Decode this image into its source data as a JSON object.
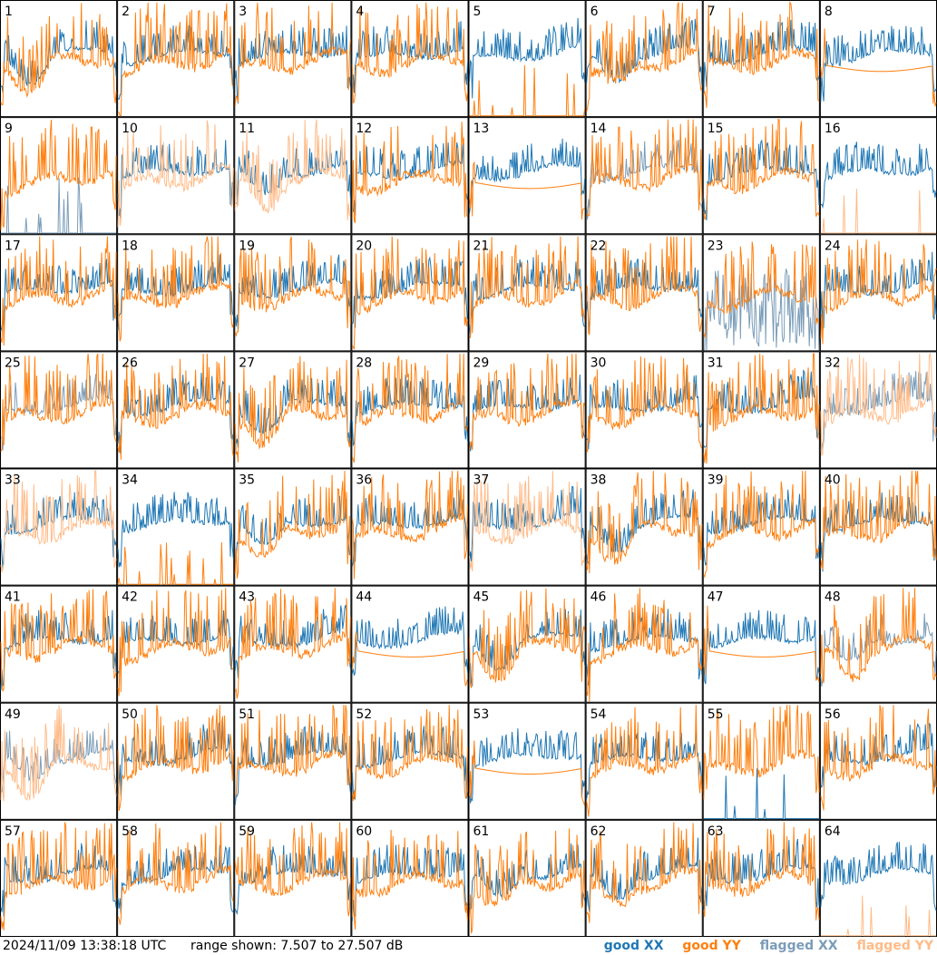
{
  "colors": {
    "good_xx": "#1f77b4",
    "good_yy": "#ff7f0e",
    "flagged_xx": "#7a9cb8",
    "flagged_yy": "#ffbb88",
    "border": "#000000"
  },
  "footer": {
    "timestamp": "2024/11/09 13:38:18 UTC",
    "range_text": "range shown: 7.507 to 27.507 dB"
  },
  "legend": {
    "good_xx": "good XX",
    "good_yy": "good YY",
    "flagged_xx": "flagged XX",
    "flagged_yy": "flagged YY"
  },
  "chart_data": {
    "type": "line",
    "grid": {
      "rows": 8,
      "cols": 8
    },
    "y_range_db": [
      7.507,
      27.507
    ],
    "panels": [
      {
        "label": "1",
        "xx": "good",
        "yy": "good",
        "shape": "dip"
      },
      {
        "label": "2",
        "xx": "good",
        "yy": "good",
        "shape": "normal"
      },
      {
        "label": "3",
        "xx": "good",
        "yy": "good",
        "shape": "normal"
      },
      {
        "label": "4",
        "xx": "good",
        "yy": "good",
        "shape": "normal"
      },
      {
        "label": "5",
        "xx": "good",
        "yy": "good",
        "shape": "yy_dead"
      },
      {
        "label": "6",
        "xx": "good",
        "yy": "good",
        "shape": "dip"
      },
      {
        "label": "7",
        "xx": "good",
        "yy": "good",
        "shape": "normal"
      },
      {
        "label": "8",
        "xx": "good",
        "yy": "good",
        "shape": "yy_smooth"
      },
      {
        "label": "9",
        "xx": "flagged",
        "yy": "good",
        "shape": "xx_dead"
      },
      {
        "label": "10",
        "xx": "good",
        "yy": "flagged",
        "shape": "normal"
      },
      {
        "label": "11",
        "xx": "good",
        "yy": "flagged",
        "shape": "dip"
      },
      {
        "label": "12",
        "xx": "good",
        "yy": "good",
        "shape": "normal"
      },
      {
        "label": "13",
        "xx": "good",
        "yy": "good",
        "shape": "yy_smooth"
      },
      {
        "label": "14",
        "xx": "flagged",
        "yy": "good",
        "shape": "normal"
      },
      {
        "label": "15",
        "xx": "good",
        "yy": "good",
        "shape": "normal"
      },
      {
        "label": "16",
        "xx": "good",
        "yy": "flagged",
        "shape": "yy_dead"
      },
      {
        "label": "17",
        "xx": "good",
        "yy": "good",
        "shape": "normal"
      },
      {
        "label": "18",
        "xx": "good",
        "yy": "good",
        "shape": "normal"
      },
      {
        "label": "19",
        "xx": "good",
        "yy": "good",
        "shape": "normal"
      },
      {
        "label": "20",
        "xx": "good",
        "yy": "good",
        "shape": "normal"
      },
      {
        "label": "21",
        "xx": "good",
        "yy": "good",
        "shape": "normal"
      },
      {
        "label": "22",
        "xx": "good",
        "yy": "good",
        "shape": "normal"
      },
      {
        "label": "23",
        "xx": "flagged",
        "yy": "good",
        "shape": "xx_noise"
      },
      {
        "label": "24",
        "xx": "good",
        "yy": "good",
        "shape": "normal"
      },
      {
        "label": "25",
        "xx": "flagged",
        "yy": "good",
        "shape": "normal"
      },
      {
        "label": "26",
        "xx": "good",
        "yy": "good",
        "shape": "normal"
      },
      {
        "label": "27",
        "xx": "good",
        "yy": "good",
        "shape": "dip"
      },
      {
        "label": "28",
        "xx": "good",
        "yy": "good",
        "shape": "normal"
      },
      {
        "label": "29",
        "xx": "good",
        "yy": "good",
        "shape": "normal"
      },
      {
        "label": "30",
        "xx": "good",
        "yy": "good",
        "shape": "normal"
      },
      {
        "label": "31",
        "xx": "good",
        "yy": "good",
        "shape": "normal"
      },
      {
        "label": "32",
        "xx": "flagged",
        "yy": "flagged",
        "shape": "normal"
      },
      {
        "label": "33",
        "xx": "good",
        "yy": "flagged",
        "shape": "normal"
      },
      {
        "label": "34",
        "xx": "good",
        "yy": "good",
        "shape": "yy_dead"
      },
      {
        "label": "35",
        "xx": "good",
        "yy": "good",
        "shape": "dip"
      },
      {
        "label": "36",
        "xx": "good",
        "yy": "good",
        "shape": "normal"
      },
      {
        "label": "37",
        "xx": "good",
        "yy": "flagged",
        "shape": "normal"
      },
      {
        "label": "38",
        "xx": "good",
        "yy": "good",
        "shape": "dip"
      },
      {
        "label": "39",
        "xx": "good",
        "yy": "good",
        "shape": "normal"
      },
      {
        "label": "40",
        "xx": "good",
        "yy": "good",
        "shape": "normal"
      },
      {
        "label": "41",
        "xx": "good",
        "yy": "good",
        "shape": "normal"
      },
      {
        "label": "42",
        "xx": "good",
        "yy": "good",
        "shape": "normal"
      },
      {
        "label": "43",
        "xx": "good",
        "yy": "good",
        "shape": "normal"
      },
      {
        "label": "44",
        "xx": "good",
        "yy": "good",
        "shape": "yy_smooth"
      },
      {
        "label": "45",
        "xx": "good",
        "yy": "good",
        "shape": "dip"
      },
      {
        "label": "46",
        "xx": "good",
        "yy": "good",
        "shape": "normal"
      },
      {
        "label": "47",
        "xx": "good",
        "yy": "good",
        "shape": "yy_smooth"
      },
      {
        "label": "48",
        "xx": "flagged",
        "yy": "good",
        "shape": "dip"
      },
      {
        "label": "49",
        "xx": "flagged",
        "yy": "flagged",
        "shape": "dip"
      },
      {
        "label": "50",
        "xx": "good",
        "yy": "good",
        "shape": "normal"
      },
      {
        "label": "51",
        "xx": "good",
        "yy": "good",
        "shape": "normal"
      },
      {
        "label": "52",
        "xx": "good",
        "yy": "good",
        "shape": "normal"
      },
      {
        "label": "53",
        "xx": "good",
        "yy": "good",
        "shape": "yy_smooth"
      },
      {
        "label": "54",
        "xx": "good",
        "yy": "good",
        "shape": "normal"
      },
      {
        "label": "55",
        "xx": "good",
        "yy": "good",
        "shape": "xx_dead"
      },
      {
        "label": "56",
        "xx": "good",
        "yy": "good",
        "shape": "normal"
      },
      {
        "label": "57",
        "xx": "good",
        "yy": "good",
        "shape": "normal"
      },
      {
        "label": "58",
        "xx": "good",
        "yy": "good",
        "shape": "normal"
      },
      {
        "label": "59",
        "xx": "good",
        "yy": "good",
        "shape": "normal"
      },
      {
        "label": "60",
        "xx": "good",
        "yy": "good",
        "shape": "normal"
      },
      {
        "label": "61",
        "xx": "good",
        "yy": "good",
        "shape": "dip"
      },
      {
        "label": "62",
        "xx": "good",
        "yy": "good",
        "shape": "dip"
      },
      {
        "label": "63",
        "xx": "good",
        "yy": "good",
        "shape": "normal"
      },
      {
        "label": "64",
        "xx": "good",
        "yy": "flagged",
        "shape": "yy_dead"
      }
    ]
  }
}
